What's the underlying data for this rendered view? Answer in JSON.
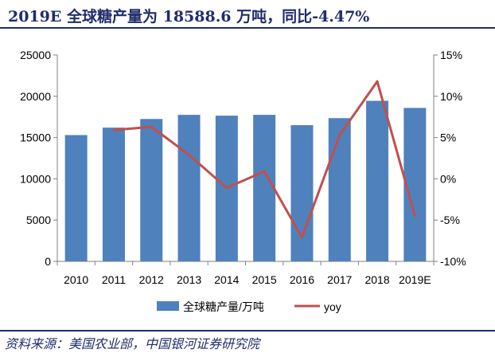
{
  "title": "2019E 全球糖产量为 18588.6 万吨，同比-4.47%",
  "source": "资料来源：美国农业部，中国银河证券研究院",
  "colors": {
    "bar": "#4f81bd",
    "line": "#c0504d",
    "title": "#1f2d6b"
  },
  "chart_data": {
    "type": "bar",
    "categories": [
      "2010",
      "2011",
      "2012",
      "2013",
      "2014",
      "2015",
      "2016",
      "2017",
      "2018",
      "2019E"
    ],
    "series": [
      {
        "name": "全球糖产量/万吨",
        "type": "bar",
        "axis": "left",
        "values": [
          15300,
          16200,
          17250,
          17750,
          17650,
          17750,
          16500,
          17350,
          19450,
          18588.6
        ]
      },
      {
        "name": "yoy",
        "type": "line",
        "axis": "right",
        "values": [
          null,
          5.9,
          6.3,
          2.9,
          -1.1,
          0.9,
          -7.1,
          5.3,
          11.8,
          -4.47
        ]
      }
    ],
    "yleft": {
      "min": 0,
      "max": 25000,
      "ticks": [
        "0",
        "5000",
        "10000",
        "15000",
        "20000",
        "25000"
      ]
    },
    "yright": {
      "min": -10,
      "max": 15,
      "ticks": [
        "-10%",
        "-5%",
        "0%",
        "5%",
        "10%",
        "15%"
      ]
    },
    "legend_position": "bottom",
    "grid": false
  }
}
